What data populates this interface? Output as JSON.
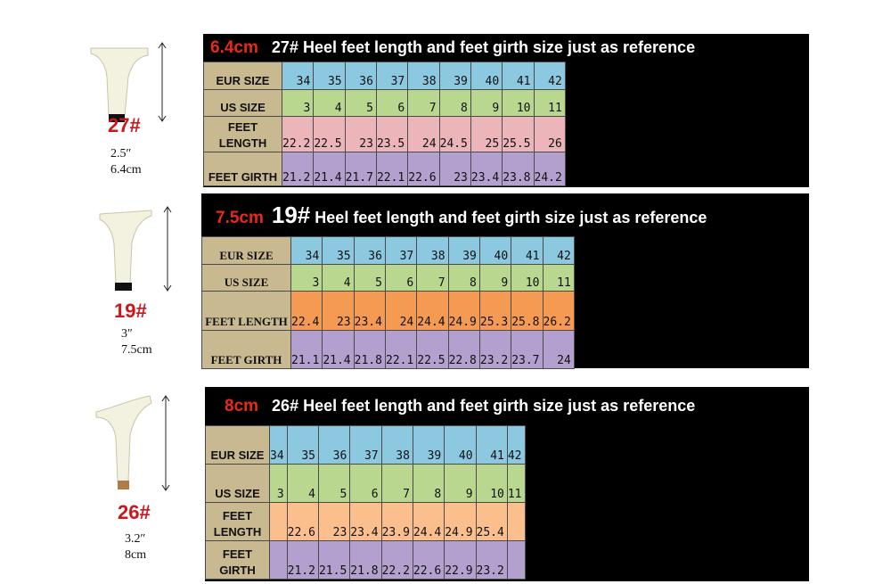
{
  "colors": {
    "eur": "#8cc9e0",
    "us": "#b9d78f",
    "girth": "#b3a0cf",
    "len_pink": "#ebb5b9",
    "len_orange": "#f49a52",
    "len_peach": "#fbbf8e",
    "label": "#c9b991"
  },
  "heels": [
    {
      "code": "27#",
      "inch": "2.5″",
      "cm": "6.4cm"
    },
    {
      "code": "19#",
      "inch": "3″",
      "cm": "7.5cm"
    },
    {
      "code": "26#",
      "inch": "3.2″",
      "cm": "8cm"
    }
  ],
  "charts": [
    {
      "cm": "6.4cm",
      "code": "27#",
      "title": "Heel feet length and feet girth size just as reference",
      "labels": {
        "eur": "EUR SIZE",
        "us": "US SIZE",
        "length": "FEET LENGTH",
        "girth": "FEET GIRTH"
      },
      "eur": [
        "34",
        "35",
        "36",
        "37",
        "38",
        "39",
        "40",
        "41",
        "42"
      ],
      "us": [
        "3",
        "4",
        "5",
        "6",
        "7",
        "8",
        "9",
        "10",
        "11"
      ],
      "length": [
        "22.2",
        "22.5",
        "23",
        "23.5",
        "24",
        "24.5",
        "25",
        "25.5",
        "26"
      ],
      "girth": [
        "21.2",
        "21.4",
        "21.7",
        "22.1",
        "22.6",
        "23",
        "23.4",
        "23.8",
        "24.2"
      ]
    },
    {
      "cm": "7.5cm",
      "code": "19#",
      "title": "Heel feet length and feet girth size just as reference",
      "labels": {
        "eur": "EUR SIZE",
        "us": "US SIZE",
        "length": "FEET LENGTH",
        "girth": "FEET GIRTH"
      },
      "eur": [
        "34",
        "35",
        "36",
        "37",
        "38",
        "39",
        "40",
        "41",
        "42"
      ],
      "us": [
        "3",
        "4",
        "5",
        "6",
        "7",
        "8",
        "9",
        "10",
        "11"
      ],
      "length": [
        "22.4",
        "23",
        "23.4",
        "24",
        "24.4",
        "24.9",
        "25.3",
        "25.8",
        "26.2"
      ],
      "girth": [
        "21.1",
        "21.4",
        "21.8",
        "22.1",
        "22.5",
        "22.8",
        "23.2",
        "23.7",
        "24"
      ]
    },
    {
      "cm": "8cm",
      "code": "26#",
      "title": "Heel feet length and feet girth size just as reference",
      "labels": {
        "eur": "EUR SIZE",
        "us": "US SIZE",
        "length": "FEET LENGTH",
        "girth": "FEET GIRTH"
      },
      "eur": [
        "34",
        "35",
        "36",
        "37",
        "38",
        "39",
        "40",
        "41",
        "42"
      ],
      "us": [
        "3",
        "4",
        "5",
        "6",
        "7",
        "8",
        "9",
        "10",
        "11"
      ],
      "length": [
        "",
        "22.6",
        "23",
        "23.4",
        "23.9",
        "24.4",
        "24.9",
        "25.4",
        ""
      ],
      "girth": [
        "",
        "21.2",
        "21.5",
        "21.8",
        "22.2",
        "22.6",
        "22.9",
        "23.2",
        ""
      ]
    }
  ]
}
